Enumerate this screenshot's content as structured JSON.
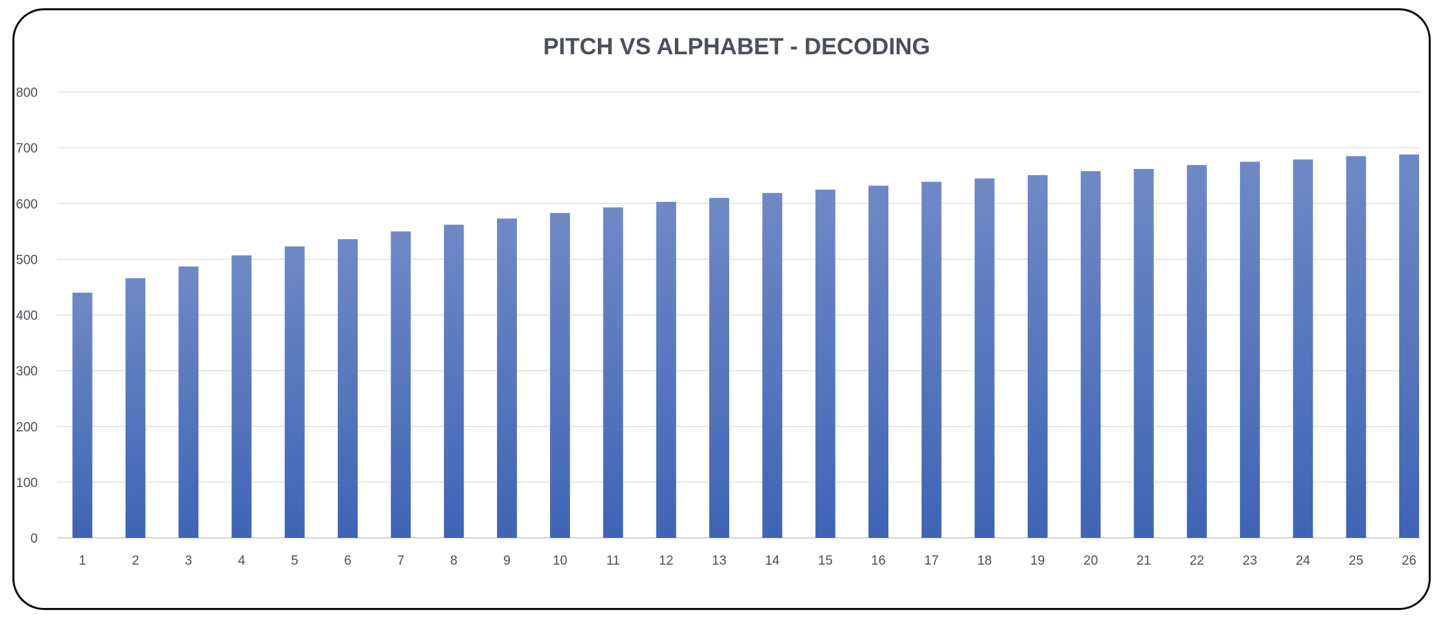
{
  "chart_data": {
    "type": "bar",
    "title": "PITCH VS ALPHABET - DECODING",
    "xlabel": "",
    "ylabel": "",
    "categories": [
      "1",
      "2",
      "3",
      "4",
      "5",
      "6",
      "7",
      "8",
      "9",
      "10",
      "11",
      "12",
      "13",
      "14",
      "15",
      "16",
      "17",
      "18",
      "19",
      "20",
      "21",
      "22",
      "23",
      "24",
      "25",
      "26"
    ],
    "series": [
      {
        "values": [
          440,
          466,
          487,
          507,
          523,
          536,
          550,
          562,
          573,
          583,
          593,
          603,
          610,
          619,
          625,
          632,
          639,
          645,
          651,
          658,
          662,
          669,
          675,
          679,
          685,
          688
        ]
      }
    ],
    "ylim": [
      0,
      800
    ],
    "yticks": [
      "0",
      "100",
      "200",
      "300",
      "400",
      "500",
      "600",
      "700",
      "800"
    ],
    "grid": true,
    "legend": "none",
    "colors": {
      "bar_top": "#6f89c6",
      "bar_bottom": "#3f64b5",
      "grid": "#e0e0e0",
      "axis": "#d4d4d4",
      "text": "#4a4f5a"
    }
  }
}
